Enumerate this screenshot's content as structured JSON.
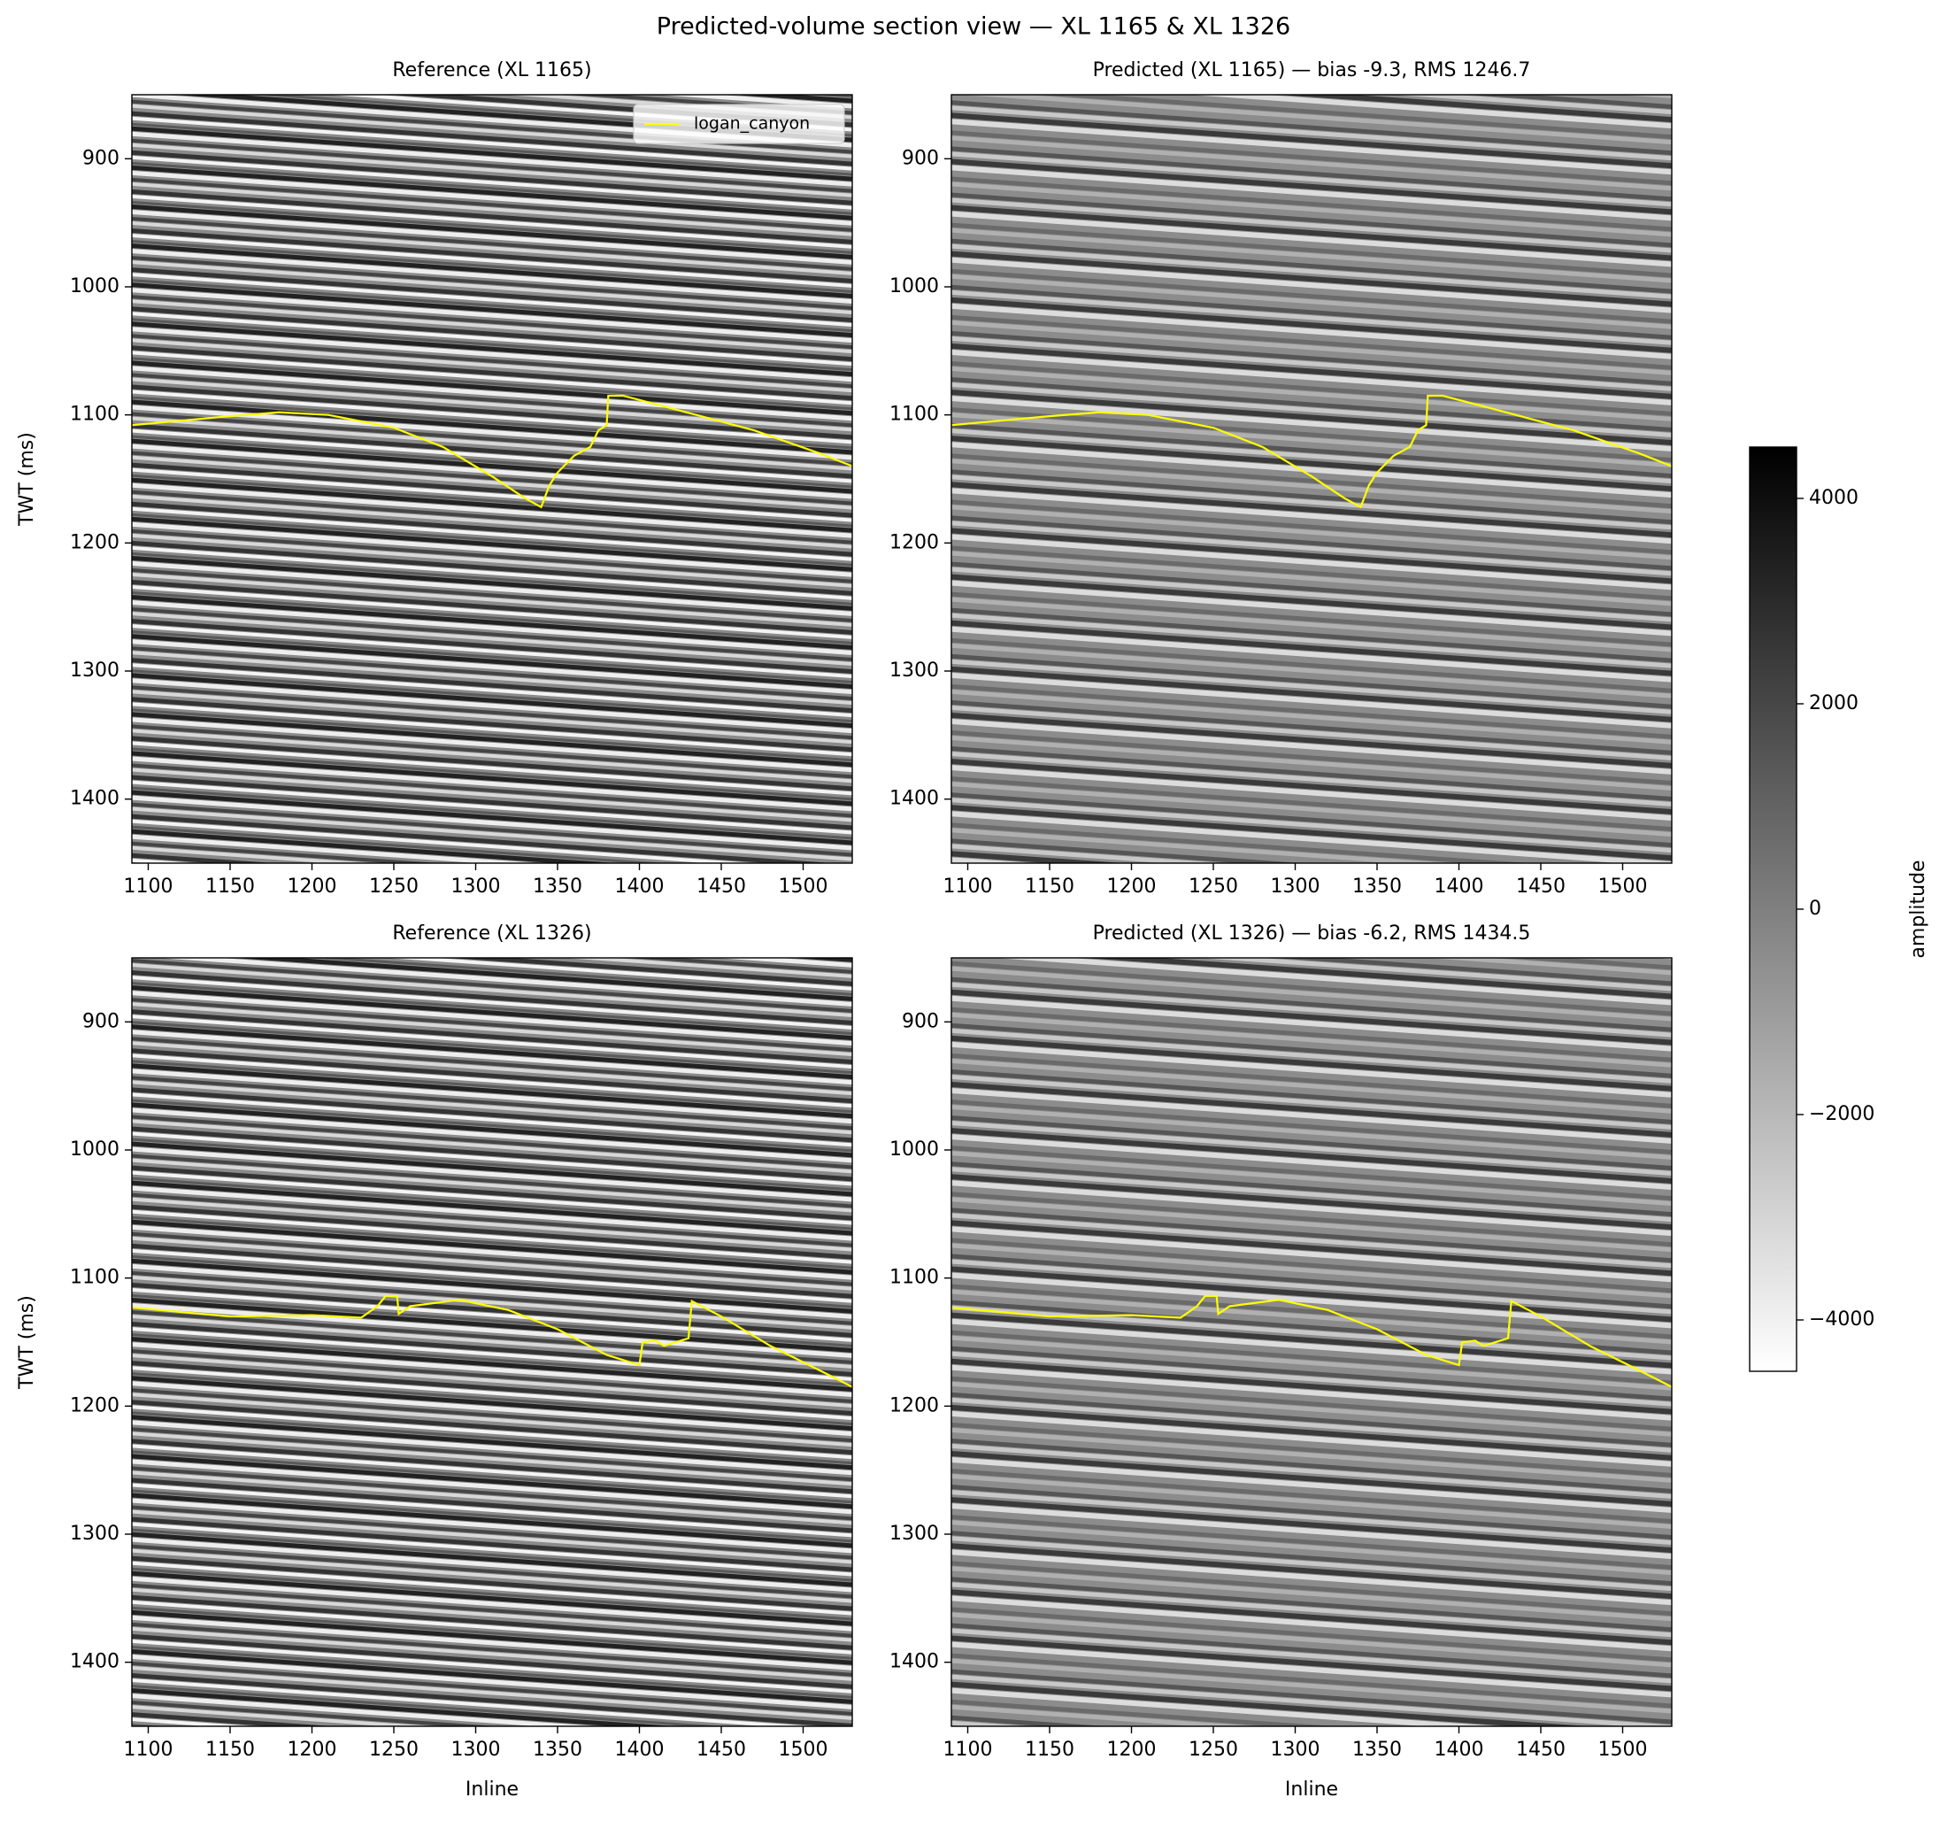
{
  "title": "Predicted-volume section view  —  XL 1165 & XL 1326",
  "chart_data": [
    {
      "type": "image",
      "title": "Reference  (XL 1165)",
      "ylabel": "TWT (ms)",
      "xlim": [
        1090,
        1530
      ],
      "ylim": [
        1450,
        850
      ],
      "xticks": [
        1100,
        1150,
        1200,
        1250,
        1300,
        1350,
        1400,
        1450,
        1500
      ],
      "yticks": [
        900,
        1000,
        1100,
        1200,
        1300,
        1400
      ],
      "legend": "upper right",
      "series": [
        {
          "name": "logan_canyon",
          "color": "#ffff00",
          "x": [
            1090,
            1150,
            1180,
            1210,
            1250,
            1280,
            1310,
            1330,
            1340,
            1345,
            1350,
            1360,
            1370,
            1375,
            1380,
            1381,
            1390,
            1420,
            1470,
            1510,
            1530
          ],
          "values": [
            1108,
            1101,
            1098,
            1100,
            1110,
            1125,
            1148,
            1165,
            1172,
            1155,
            1145,
            1132,
            1125,
            1112,
            1108,
            1085,
            1085,
            1095,
            1112,
            1130,
            1140
          ]
        }
      ]
    },
    {
      "type": "image",
      "title": "Predicted  (XL 1165)  —  bias -9.3, RMS 1246.7",
      "xlim": [
        1090,
        1530
      ],
      "ylim": [
        1450,
        850
      ],
      "xticks": [
        1100,
        1150,
        1200,
        1250,
        1300,
        1350,
        1400,
        1450,
        1500
      ],
      "yticks": [
        900,
        1000,
        1100,
        1200,
        1300,
        1400
      ],
      "series": [
        {
          "color": "#ffff00",
          "x": [
            1090,
            1150,
            1180,
            1210,
            1250,
            1280,
            1310,
            1330,
            1340,
            1345,
            1350,
            1360,
            1370,
            1375,
            1380,
            1381,
            1390,
            1420,
            1470,
            1510,
            1530
          ],
          "values": [
            1108,
            1101,
            1098,
            1100,
            1110,
            1125,
            1148,
            1165,
            1172,
            1155,
            1145,
            1132,
            1125,
            1112,
            1108,
            1085,
            1085,
            1095,
            1112,
            1130,
            1140
          ]
        }
      ]
    },
    {
      "type": "image",
      "title": "Reference  (XL 1326)",
      "ylabel": "TWT (ms)",
      "xlabel": "Inline",
      "xlim": [
        1090,
        1530
      ],
      "ylim": [
        1450,
        850
      ],
      "xticks": [
        1100,
        1150,
        1200,
        1250,
        1300,
        1350,
        1400,
        1450,
        1500
      ],
      "yticks": [
        900,
        1000,
        1100,
        1200,
        1300,
        1400
      ],
      "series": [
        {
          "color": "#ffff00",
          "x": [
            1090,
            1150,
            1200,
            1230,
            1240,
            1245,
            1252,
            1253,
            1260,
            1290,
            1320,
            1350,
            1380,
            1400,
            1402,
            1410,
            1415,
            1430,
            1432,
            1450,
            1480,
            1510,
            1530
          ],
          "values": [
            1123,
            1130,
            1129,
            1131,
            1122,
            1114,
            1114,
            1128,
            1122,
            1117,
            1125,
            1140,
            1160,
            1168,
            1150,
            1149,
            1153,
            1147,
            1118,
            1130,
            1153,
            1172,
            1185
          ]
        }
      ]
    },
    {
      "type": "image",
      "title": "Predicted  (XL 1326)  —  bias -6.2, RMS 1434.5",
      "xlabel": "Inline",
      "xlim": [
        1090,
        1530
      ],
      "ylim": [
        1450,
        850
      ],
      "xticks": [
        1100,
        1150,
        1200,
        1250,
        1300,
        1350,
        1400,
        1450,
        1500
      ],
      "yticks": [
        900,
        1000,
        1100,
        1200,
        1300,
        1400
      ],
      "series": [
        {
          "color": "#ffff00",
          "x": [
            1090,
            1150,
            1200,
            1230,
            1240,
            1245,
            1252,
            1253,
            1260,
            1290,
            1320,
            1350,
            1380,
            1400,
            1402,
            1410,
            1415,
            1430,
            1432,
            1450,
            1480,
            1510,
            1530
          ],
          "values": [
            1123,
            1130,
            1129,
            1131,
            1122,
            1114,
            1114,
            1128,
            1122,
            1117,
            1125,
            1140,
            1160,
            1168,
            1150,
            1149,
            1153,
            1147,
            1118,
            1130,
            1153,
            1172,
            1185
          ]
        }
      ]
    },
    {
      "type": "colorbar",
      "ylabel": "amplitude",
      "cmap": "gray_r",
      "ylim": [
        -4500,
        4500
      ],
      "yticks": [
        {
          "value": -4000,
          "label": "−4000"
        },
        {
          "value": -2000,
          "label": "−2000"
        },
        0,
        2000,
        4000
      ]
    }
  ]
}
